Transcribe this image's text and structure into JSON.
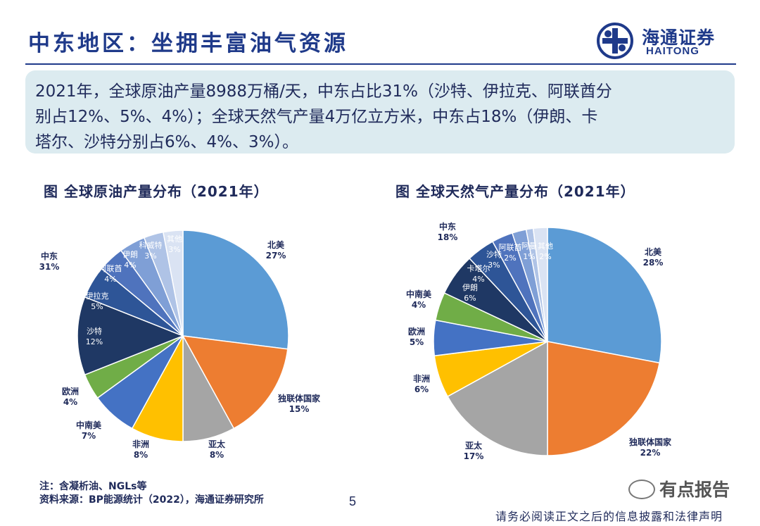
{
  "page": {
    "title": "中东地区：坐拥丰富油气资源",
    "page_number": "5"
  },
  "logo": {
    "cn": "海通证券",
    "en": "HAITONG"
  },
  "summary": {
    "p1": "2021年，全球原油产量8988万桶/天，中东占比31%（沙特、伊拉克、阿联酋分",
    "p2": "别占12%、5%、4%）；全球天然气产量4万亿立方米，中东占18%（伊朗、卡",
    "p3": "塔尔、沙特分别占6%、4%、3%）。"
  },
  "chart_data": [
    {
      "type": "pie",
      "title": "图 全球原油产量分布（2021年）",
      "slices": [
        {
          "name": "北美",
          "value": 27,
          "label": "27%",
          "color": "#5b9bd5"
        },
        {
          "name": "独联体国家",
          "value": 15,
          "label": "15%",
          "color": "#ed7d31"
        },
        {
          "name": "亚太",
          "value": 8,
          "label": "8%",
          "color": "#a5a5a5"
        },
        {
          "name": "非洲",
          "value": 8,
          "label": "8%",
          "color": "#ffc000"
        },
        {
          "name": "中南美",
          "value": 7,
          "label": "7%",
          "color": "#4472c4"
        },
        {
          "name": "欧洲",
          "value": 4,
          "label": "4%",
          "color": "#70ad47"
        },
        {
          "name": "沙特",
          "value": 12,
          "label": "12%",
          "color": "#1f3864"
        },
        {
          "name": "伊拉克",
          "value": 5,
          "label": "5%",
          "color": "#2e5597"
        },
        {
          "name": "阿联酋",
          "value": 4,
          "label": "4%",
          "color": "#4f73bd"
        },
        {
          "name": "伊朗",
          "value": 4,
          "label": "4%",
          "color": "#7f9fd6"
        },
        {
          "name": "科威特",
          "value": 3,
          "label": "3%",
          "color": "#afc3e6"
        },
        {
          "name": "其他",
          "value": 3,
          "label": "3%",
          "color": "#dae3f3"
        }
      ],
      "group": {
        "name": "中东",
        "label": "31%"
      }
    },
    {
      "type": "pie",
      "title": "图 全球天然气产量分布（2021年）",
      "slices": [
        {
          "name": "北美",
          "value": 28,
          "label": "28%",
          "color": "#5b9bd5"
        },
        {
          "name": "独联体国家",
          "value": 22,
          "label": "22%",
          "color": "#ed7d31"
        },
        {
          "name": "亚太",
          "value": 17,
          "label": "17%",
          "color": "#a5a5a5"
        },
        {
          "name": "非洲",
          "value": 6,
          "label": "6%",
          "color": "#ffc000"
        },
        {
          "name": "欧洲",
          "value": 5,
          "label": "5%",
          "color": "#4472c4"
        },
        {
          "name": "中南美",
          "value": 4,
          "label": "4%",
          "color": "#70ad47"
        },
        {
          "name": "伊朗",
          "value": 6,
          "label": "6%",
          "color": "#1f3864"
        },
        {
          "name": "卡塔尔",
          "value": 4,
          "label": "4%",
          "color": "#2e5597"
        },
        {
          "name": "沙特",
          "value": 3,
          "label": "3%",
          "color": "#4f73bd"
        },
        {
          "name": "阿联酋",
          "value": 2,
          "label": "2%",
          "color": "#7f9fd6"
        },
        {
          "name": "阿曼",
          "value": 1,
          "label": "1%",
          "color": "#afc3e6"
        },
        {
          "name": "其他",
          "value": 2,
          "label": "2%",
          "color": "#dae3f3"
        }
      ],
      "group": {
        "name": "中东",
        "label": "18%"
      }
    }
  ],
  "footer": {
    "note": "注：含凝析油、NGLs等",
    "source": "资料来源：BP能源统计（2022），海通证券研究所",
    "watermark": "有点报告",
    "disclaimer": "请务必阅读正文之后的信息披露和法律声明"
  }
}
